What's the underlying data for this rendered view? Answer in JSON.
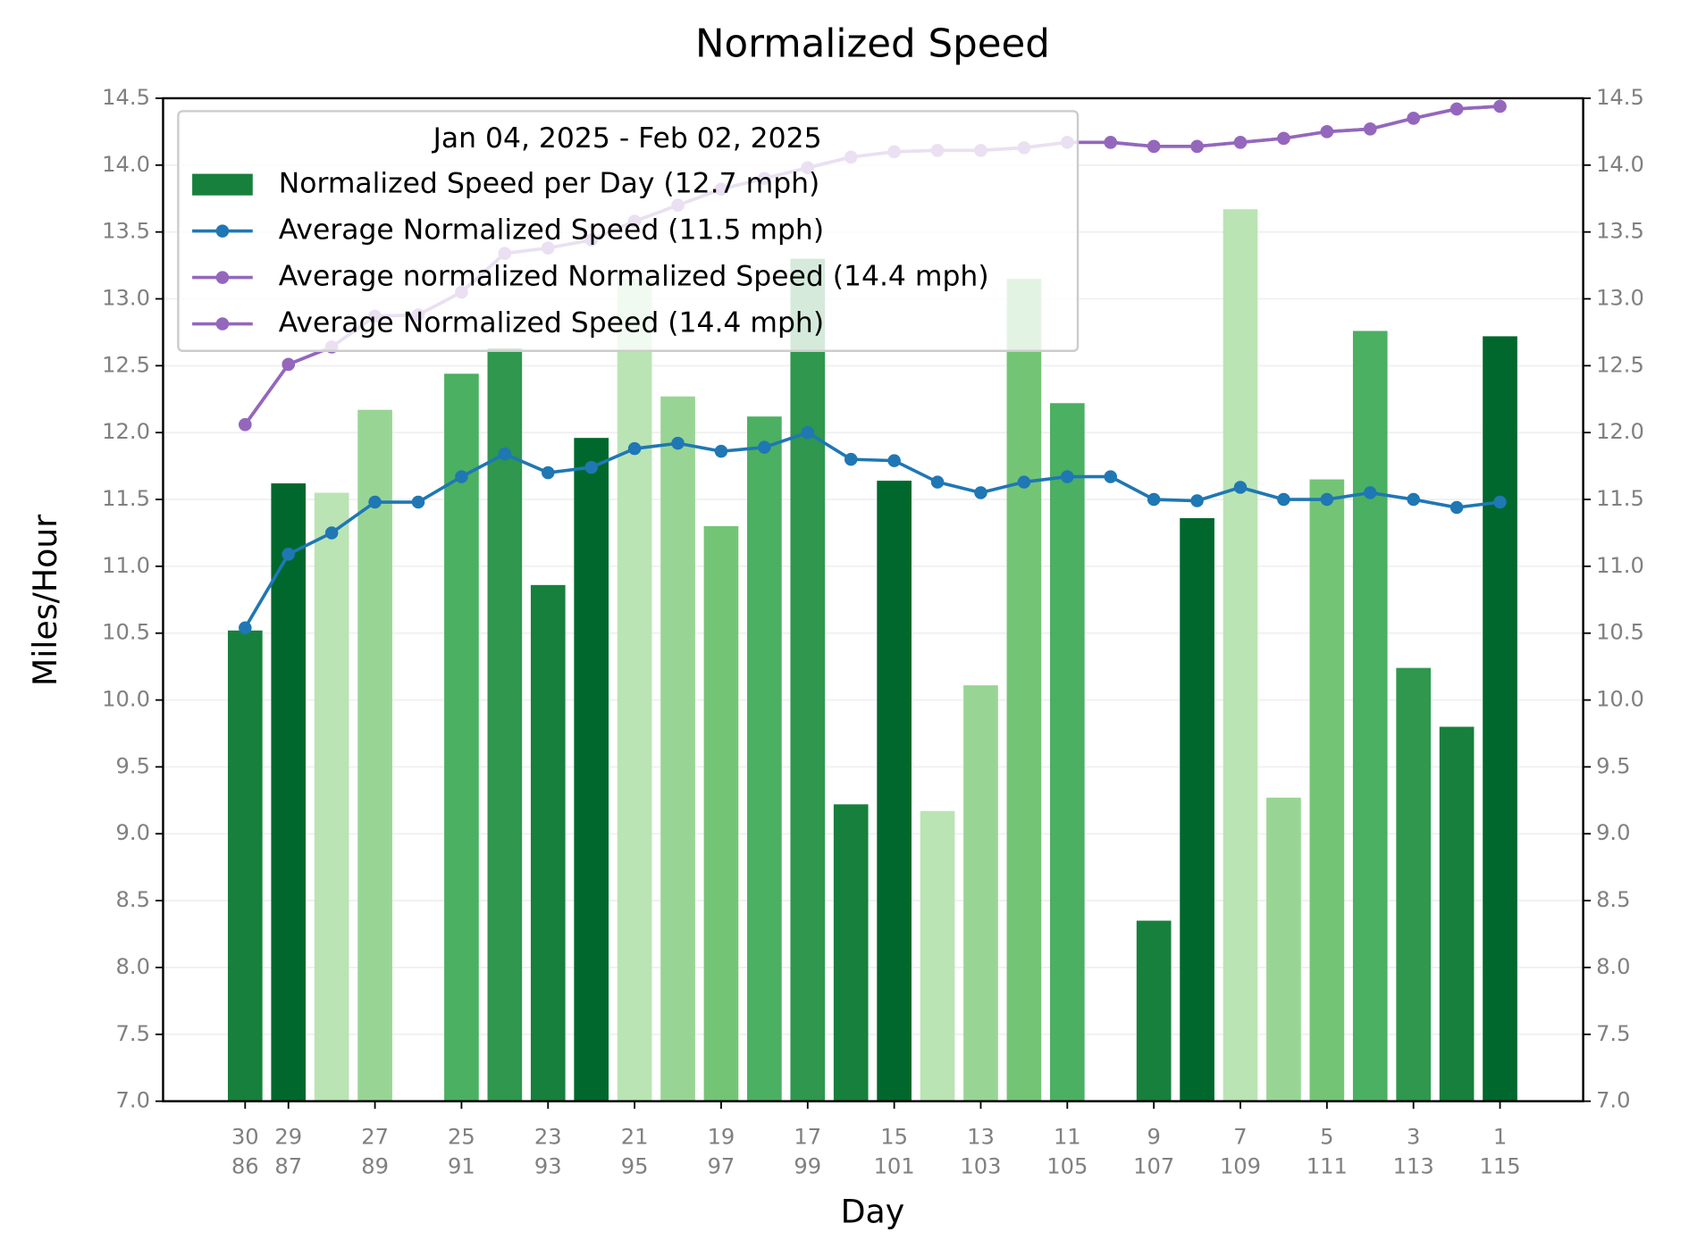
{
  "chart_data": {
    "type": "bar",
    "title": "Normalized Speed",
    "x_label": "Day",
    "y_label": "Miles/Hour",
    "legend_title": "Jan 04, 2025 - Feb 02, 2025",
    "legend_position": "upper left",
    "grid": true,
    "categories": [
      [
        "30",
        "86"
      ],
      [
        "29",
        "87"
      ],
      null,
      [
        "27",
        "89"
      ],
      null,
      [
        "25",
        "91"
      ],
      null,
      [
        "23",
        "93"
      ],
      null,
      [
        "21",
        "95"
      ],
      null,
      [
        "19",
        "97"
      ],
      null,
      [
        "17",
        "99"
      ],
      null,
      [
        "15",
        "101"
      ],
      null,
      [
        "13",
        "103"
      ],
      null,
      [
        "11",
        "105"
      ],
      null,
      [
        "9",
        "107"
      ],
      null,
      [
        "7",
        "109"
      ],
      null,
      [
        "5",
        "111"
      ],
      null,
      [
        "3",
        "113"
      ],
      null,
      [
        "1",
        "115"
      ]
    ],
    "ylim": [
      7.0,
      14.5
    ],
    "yticks": [
      {
        "value": 7.0,
        "label": "7.0"
      },
      7.5,
      {
        "value": 8.0,
        "label": "8.0"
      },
      8.5,
      {
        "value": 9.0,
        "label": "9.0"
      },
      9.5,
      {
        "value": 10.0,
        "label": "10.0"
      },
      10.5,
      {
        "value": 11.0,
        "label": "11.0"
      },
      11.5,
      {
        "value": 12.0,
        "label": "12.0"
      },
      12.5,
      {
        "value": 13.0,
        "label": "13.0"
      },
      13.5,
      {
        "value": 14.0,
        "label": "14.0"
      },
      14.5
    ],
    "y2lim": [
      7.0,
      14.5
    ],
    "y2ticks": [
      {
        "value": 7.0,
        "label": "7.0"
      },
      7.5,
      {
        "value": 8.0,
        "label": "8.0"
      },
      8.5,
      {
        "value": 9.0,
        "label": "9.0"
      },
      9.5,
      {
        "value": 10.0,
        "label": "10.0"
      },
      10.5,
      {
        "value": 11.0,
        "label": "11.0"
      },
      11.5,
      {
        "value": 12.0,
        "label": "12.0"
      },
      12.5,
      {
        "value": 13.0,
        "label": "13.0"
      },
      13.5,
      {
        "value": 14.0,
        "label": "14.0"
      },
      14.5
    ],
    "series": [
      {
        "name": "Normalized Speed per Day (12.7 mph)",
        "type": "bar",
        "colors": [
          "#17803d",
          "#00682d",
          "#bae4b3",
          "#98d594",
          null,
          "#4bb062",
          "#2f974e",
          "#17803d",
          "#00682d",
          "#bae4b3",
          "#98d594",
          "#74c476",
          "#4bb062",
          "#2f974e",
          "#17803d",
          "#00682d",
          "#bae4b3",
          "#98d594",
          "#74c476",
          "#4bb062",
          null,
          "#17803d",
          "#00682d",
          "#bae4b3",
          "#98d594",
          "#74c476",
          "#4bb062",
          "#2f974e",
          "#17803d",
          "#00682d"
        ],
        "values": [
          10.52,
          11.62,
          11.55,
          12.17,
          null,
          12.44,
          12.63,
          10.86,
          11.96,
          13.15,
          12.27,
          11.3,
          12.12,
          13.3,
          9.22,
          11.64,
          9.17,
          10.11,
          13.15,
          12.22,
          null,
          8.35,
          11.36,
          13.67,
          9.27,
          11.65,
          12.76,
          10.24,
          9.8,
          12.72
        ]
      },
      {
        "name": "Average Normalized Speed (11.5 mph)",
        "type": "line",
        "color": "#1f77b4",
        "values": [
          10.54,
          11.09,
          11.25,
          11.48,
          11.48,
          11.67,
          11.84,
          11.7,
          11.74,
          11.88,
          11.92,
          11.86,
          11.89,
          12.0,
          11.8,
          11.79,
          11.63,
          11.55,
          11.63,
          11.67,
          11.67,
          11.5,
          11.49,
          11.59,
          11.5,
          11.5,
          11.55,
          11.5,
          11.44,
          11.48
        ]
      },
      {
        "name": "Average normalized Normalized Speed (14.4 mph)",
        "type": "line",
        "color": "#9467bd",
        "values": [
          12.06,
          12.51,
          12.64,
          12.87,
          12.88,
          13.05,
          13.34,
          13.38,
          13.44,
          13.58,
          13.7,
          13.82,
          13.9,
          13.98,
          14.06,
          14.1,
          14.11,
          14.11,
          14.13,
          14.17,
          14.17,
          14.14,
          14.14,
          14.17,
          14.2,
          14.25,
          14.27,
          14.35,
          14.42,
          14.44
        ]
      },
      {
        "name": "Average Normalized Speed (14.4 mph)",
        "type": "line",
        "color": "#9467bd",
        "values": [
          12.06,
          12.51,
          12.64,
          12.87,
          12.88,
          13.05,
          13.34,
          13.38,
          13.44,
          13.58,
          13.7,
          13.82,
          13.9,
          13.98,
          14.06,
          14.1,
          14.11,
          14.11,
          14.13,
          14.17,
          14.17,
          14.14,
          14.14,
          14.17,
          14.2,
          14.25,
          14.27,
          14.35,
          14.42,
          14.44
        ]
      }
    ]
  }
}
